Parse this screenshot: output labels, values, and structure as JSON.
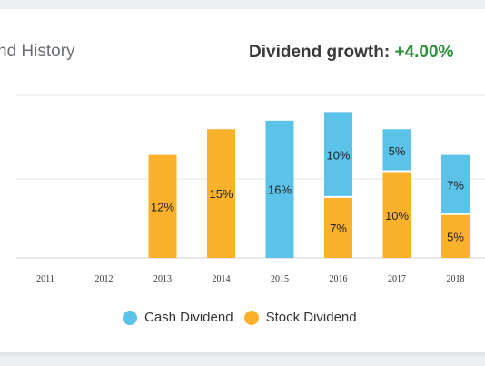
{
  "header": {
    "title": "nd History",
    "growth_label": "Dividend growth:",
    "growth_value": "+4.00%"
  },
  "chart_data": {
    "type": "bar",
    "stacked": true,
    "categories": [
      "2011",
      "2012",
      "2013",
      "2014",
      "2015",
      "2016",
      "2017",
      "2018"
    ],
    "series": [
      {
        "name": "Stock Dividend",
        "color": "#fbb12b",
        "values": [
          0,
          0,
          12,
          15,
          0,
          7,
          10,
          5
        ],
        "labels": [
          "",
          "",
          "12%",
          "15%",
          "",
          "7%",
          "10%",
          "5%"
        ]
      },
      {
        "name": "Cash Dividend",
        "color": "#5bc2e8",
        "values": [
          0,
          0,
          0,
          0,
          16,
          10,
          5,
          7
        ],
        "labels": [
          "",
          "",
          "",
          "",
          "16%",
          "10%",
          "5%",
          "7%"
        ]
      }
    ],
    "ylim": [
      0,
      20
    ],
    "grid": true,
    "legend_position": "bottom"
  }
}
